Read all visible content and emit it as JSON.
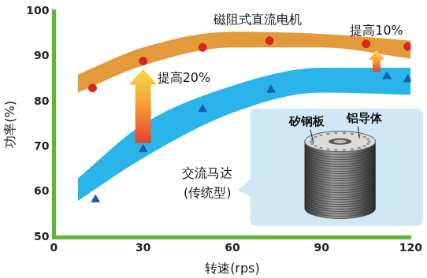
{
  "chart_data": {
    "type": "scatter",
    "x_label": "转速(rps)",
    "y_label": "功率(%)",
    "xlim": [
      0,
      120
    ],
    "xticks": [
      0,
      30,
      60,
      90,
      120
    ],
    "ylim": [
      50,
      100
    ],
    "yticks": [
      50,
      60,
      70,
      80,
      90,
      100
    ],
    "grid": false,
    "series": [
      {
        "type": "band",
        "color": "#e39a3b",
        "x": [
          8,
          30,
          60,
          90,
          120
        ],
        "lower": [
          82,
          88,
          92,
          92,
          89.5
        ],
        "upper": [
          86,
          92,
          95.5,
          95,
          93.5
        ]
      },
      {
        "type": "band",
        "color": "#2ab4ea",
        "x": [
          8,
          30,
          60,
          90,
          120
        ],
        "lower": [
          58,
          67.5,
          77.5,
          82,
          81.5
        ],
        "upper": [
          63,
          75,
          83.5,
          87.5,
          87.5
        ]
      },
      {
        "name": "磁阻式直流电机",
        "type": "scatter",
        "marker": "circle",
        "color": "#d7261e",
        "x": [
          13,
          30,
          50,
          72.5,
          105,
          119
        ],
        "values": [
          83,
          89,
          92,
          93.5,
          92.8,
          92.2
        ]
      },
      {
        "name": "交流马达(传统型)",
        "type": "scatter",
        "marker": "triangle",
        "color": "#1a5fae",
        "x": [
          14,
          30,
          50,
          73,
          112,
          119
        ],
        "values": [
          58.3,
          69.4,
          78.3,
          82.6,
          85.6,
          84.9
        ]
      }
    ],
    "annotations": [
      "提高20%",
      "提高10%"
    ],
    "inset_labels": [
      "矽钢板",
      "铝导体"
    ]
  }
}
